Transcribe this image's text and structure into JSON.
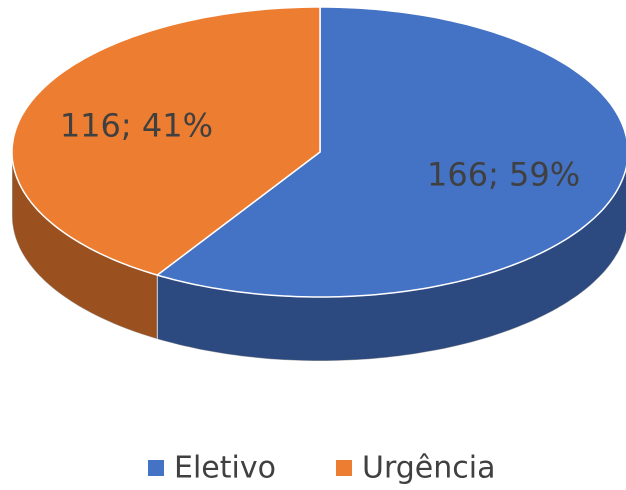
{
  "chart_data": {
    "type": "pie",
    "categories": [
      "Eletivo",
      "Urgência"
    ],
    "values": [
      166,
      116
    ],
    "value_labels": [
      "166; 59%",
      "116; 41%"
    ],
    "colors": [
      "#4472c4",
      "#ed7d31"
    ],
    "legend": "bottom"
  }
}
